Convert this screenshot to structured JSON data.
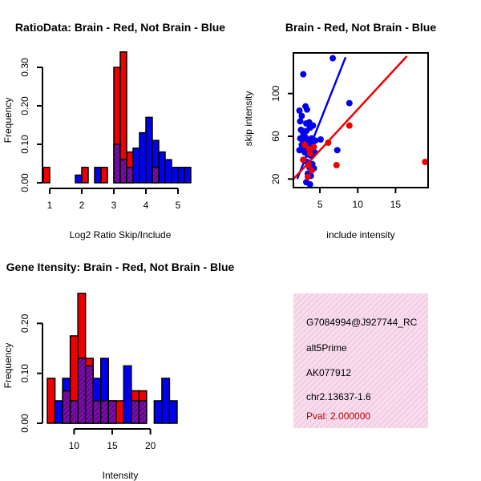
{
  "chart_data": [
    {
      "id": "ratio",
      "type": "histogram",
      "title": "RatioData: Brain - Red, Not Brain - Blue",
      "xlabel": "Log2 Ratio Skip/Include",
      "ylabel": "Frequency",
      "xlim": [
        0.95,
        5.45
      ],
      "ylim": [
        0,
        0.35
      ],
      "xticks": [
        "1",
        "2",
        "3",
        "4",
        "5"
      ],
      "yticks": [
        "0.00",
        "0.10",
        "0.20",
        "0.30"
      ],
      "bin_width": 0.2,
      "series": [
        {
          "name": "Not Brain",
          "color": "#0000ee",
          "bars": [
            [
              1.9,
              0.02
            ],
            [
              2.5,
              0.04
            ],
            [
              3.1,
              0.1
            ],
            [
              3.3,
              0.06
            ],
            [
              3.5,
              0.04
            ],
            [
              3.7,
              0.09
            ],
            [
              3.9,
              0.13
            ],
            [
              4.1,
              0.17
            ],
            [
              4.3,
              0.11
            ],
            [
              4.5,
              0.08
            ],
            [
              4.7,
              0.06
            ],
            [
              4.9,
              0.04
            ],
            [
              5.1,
              0.04
            ],
            [
              5.3,
              0.04
            ]
          ]
        },
        {
          "name": "Brain",
          "color": "#ee0000",
          "bars": [
            [
              0.9,
              0.04
            ],
            [
              2.1,
              0.04
            ],
            [
              2.7,
              0.04
            ],
            [
              3.1,
              0.3
            ],
            [
              3.3,
              0.34
            ],
            [
              3.5,
              0.08
            ],
            [
              4.3,
              0.04
            ]
          ]
        }
      ]
    },
    {
      "id": "scatter",
      "type": "scatter",
      "title": "Brain - Red, Not Brain - Blue",
      "xlabel": "include intensity",
      "ylabel": "skip intensity",
      "xlim": [
        1.5,
        19.3
      ],
      "ylim": [
        12,
        138
      ],
      "xticks": [
        "5",
        "10",
        "15"
      ],
      "yticks": [
        "20",
        "60",
        "100"
      ],
      "series": [
        {
          "name": "Not Brain",
          "color": "#0000ee",
          "points": [
            [
              6.7,
              133
            ],
            [
              2.8,
              118
            ],
            [
              2.3,
              84
            ],
            [
              2.6,
              79
            ],
            [
              3.1,
              88
            ],
            [
              3.3,
              85
            ],
            [
              2.4,
              74
            ],
            [
              3.2,
              72
            ],
            [
              3.6,
              73
            ],
            [
              2.5,
              66
            ],
            [
              2.8,
              63
            ],
            [
              3.2,
              65
            ],
            [
              3.7,
              68
            ],
            [
              4.1,
              70
            ],
            [
              2.4,
              58
            ],
            [
              2.7,
              57
            ],
            [
              3.1,
              59
            ],
            [
              3.5,
              55
            ],
            [
              3.9,
              58
            ],
            [
              4.4,
              56
            ],
            [
              5.1,
              57
            ],
            [
              2.6,
              52
            ],
            [
              2.9,
              50
            ],
            [
              3.3,
              50
            ],
            [
              3.7,
              49
            ],
            [
              4.0,
              52
            ],
            [
              2.3,
              47
            ],
            [
              3.0,
              45
            ],
            [
              3.4,
              43
            ],
            [
              3.8,
              42
            ],
            [
              4.3,
              45
            ],
            [
              2.8,
              38
            ],
            [
              3.3,
              36
            ],
            [
              4.0,
              34
            ],
            [
              3.6,
              31
            ],
            [
              4.2,
              30
            ],
            [
              3.4,
              25
            ],
            [
              3.8,
              23
            ],
            [
              3.2,
              17
            ],
            [
              3.7,
              15
            ],
            [
              8.9,
              91
            ],
            [
              7.3,
              47
            ]
          ],
          "fit": [
            [
              2.0,
              20
            ],
            [
              8.4,
              134
            ]
          ]
        },
        {
          "name": "Brain",
          "color": "#ee0000",
          "points": [
            [
              3.0,
              52
            ],
            [
              3.6,
              48
            ],
            [
              4.2,
              50
            ],
            [
              3.7,
              44
            ],
            [
              2.8,
              38
            ],
            [
              3.5,
              33
            ],
            [
              3.9,
              28
            ],
            [
              3.4,
              22
            ],
            [
              6.1,
              54
            ],
            [
              8.9,
              70
            ],
            [
              7.2,
              33
            ],
            [
              18.9,
              36
            ]
          ],
          "fit": [
            [
              1.5,
              20
            ],
            [
              16.5,
              135
            ]
          ]
        }
      ]
    },
    {
      "id": "intensity",
      "type": "histogram",
      "title": "Gene Itensity: Brain - Red, Not Brain - Blue",
      "xlabel": "Intensity",
      "ylabel": "Frequency",
      "xlim": [
        6.6,
        25.5
      ],
      "ylim": [
        0,
        0.26
      ],
      "xticks": [
        "10",
        "15",
        "20"
      ],
      "yticks": [
        "0.00",
        "0.10",
        "0.20"
      ],
      "bin_width": 1,
      "series": [
        {
          "name": "Not Brain",
          "color": "#0000ee",
          "bars": [
            [
              8,
              0.045
            ],
            [
              9,
              0.09
            ],
            [
              10,
              0.045
            ],
            [
              11,
              0.13
            ],
            [
              12,
              0.115
            ],
            [
              13,
              0.09
            ],
            [
              14,
              0.13
            ],
            [
              15,
              0.045
            ],
            [
              17,
              0.115
            ],
            [
              18,
              0.045
            ],
            [
              19,
              0.045
            ],
            [
              21,
              0.045
            ],
            [
              22,
              0.09
            ],
            [
              23,
              0.045
            ]
          ]
        },
        {
          "name": "Brain",
          "color": "#ee0000",
          "bars": [
            [
              7,
              0.09
            ],
            [
              9,
              0.065
            ],
            [
              10,
              0.175
            ],
            [
              11,
              0.26
            ],
            [
              12,
              0.13
            ],
            [
              13,
              0.045
            ],
            [
              14,
              0.045
            ],
            [
              15,
              0.045
            ],
            [
              16,
              0.045
            ],
            [
              18,
              0.065
            ],
            [
              19,
              0.065
            ]
          ]
        }
      ]
    }
  ],
  "info_box": {
    "probe_id": "G7084994@J927744_RC",
    "event_type": "alt5Prime",
    "accession": "AK077912",
    "location": "chr2.13637-1.6",
    "pval": "Pval: 2.000000"
  }
}
